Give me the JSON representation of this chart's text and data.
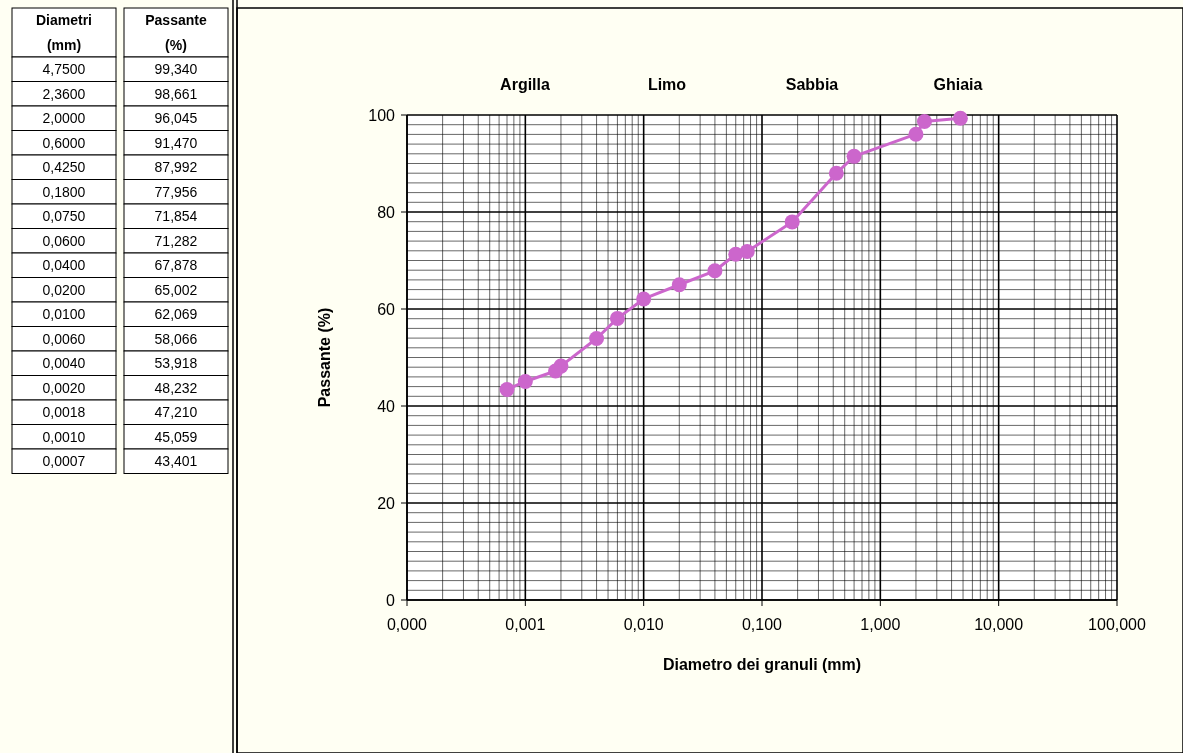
{
  "chart_data": [
    {
      "type": "other",
      "xlabel": "Diametri (mm)",
      "ylabel": "Passante (%)",
      "categories": [
        "4,7500",
        "2,3600",
        "2,0000",
        "0,6000",
        "0,4250",
        "0,1800",
        "0,0750",
        "0,0600",
        "0,0400",
        "0,0200",
        "0,0100",
        "0,0060",
        "0,0040",
        "0,0020",
        "0,0018",
        "0,0010",
        "0,0007"
      ],
      "value_labels": [
        "99,340",
        "98,661",
        "96,045",
        "91,470",
        "87,992",
        "77,956",
        "71,854",
        "71,282",
        "67,878",
        "65,002",
        "62,069",
        "58,066",
        "53,918",
        "48,232",
        "47,210",
        "45,059",
        "43,401"
      ]
    },
    {
      "type": "line",
      "xlabel": "Diametro dei granuli (mm)",
      "ylabel": "Passante (%)",
      "annotations": [
        "Argilla",
        "Limo",
        "Sabbia",
        "Ghiaia"
      ],
      "x": [
        4.75,
        2.36,
        2,
        0.6,
        0.425,
        0.18,
        0.075,
        0.06,
        0.04,
        0.02,
        0.01,
        0.006,
        0.004,
        0.002,
        0.0018,
        0.001,
        0.0007
      ],
      "series": [
        {
          "color": "#cc66cc",
          "values": [
            99.34,
            98.661,
            96.045,
            91.47,
            87.992,
            77.956,
            71.854,
            71.282,
            67.878,
            65.002,
            62.069,
            58.066,
            53.918,
            48.232,
            47.21,
            45.059,
            43.401
          ]
        }
      ],
      "log": "x",
      "xlim": [
        0.0001,
        100
      ],
      "xticks": [
        {
          "value": 0.0001,
          "label": "0,000"
        },
        {
          "value": 0.001,
          "label": "0,001"
        },
        {
          "value": 0.01,
          "label": "0,010"
        },
        {
          "value": 0.1,
          "label": "0,100"
        },
        {
          "value": 1,
          "label": "1,000"
        },
        {
          "value": 10,
          "label": "10,000"
        },
        {
          "value": 100,
          "label": "100,000"
        }
      ],
      "ylim": [
        0,
        100
      ],
      "yticks": [
        0,
        20,
        40,
        60,
        80,
        100
      ],
      "grid": true,
      "marker": "circle",
      "line_style": "solid"
    }
  ]
}
